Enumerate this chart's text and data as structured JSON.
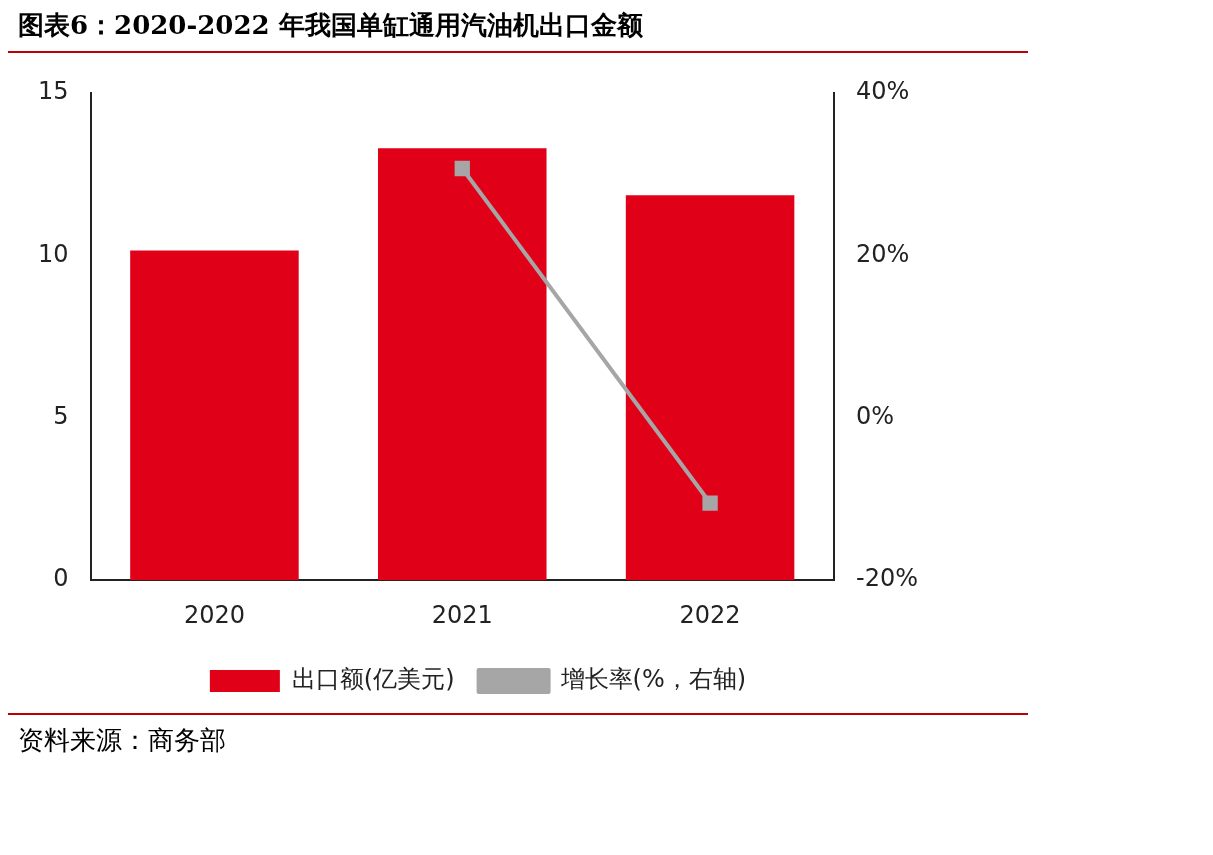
{
  "chart_data": {
    "type": "bar",
    "title": "图表6：2020-2022 年我国单缸通用汽油机出口金额",
    "categories": [
      "2020",
      "2021",
      "2022"
    ],
    "series": [
      {
        "name": "出口额(亿美元)",
        "color": "#e00018",
        "values": [
          10.15,
          13.3,
          11.85
        ]
      },
      {
        "name": "增长率(%，右轴)",
        "type": "line",
        "axis": "y2",
        "color": "#a6a6a6",
        "marker": "square",
        "values": [
          null,
          30.7,
          -10.5
        ]
      }
    ],
    "ylim": [
      0,
      15
    ],
    "yticks": [
      0,
      5,
      10,
      15
    ],
    "y2lim": [
      -20,
      40
    ],
    "y2ticks": [
      {
        "value": -20,
        "label": "-20%"
      },
      {
        "value": 0,
        "label": "0%"
      },
      {
        "value": 20,
        "label": "20%"
      },
      {
        "value": 40,
        "label": "40%"
      }
    ],
    "grid": false,
    "legend": "bottom",
    "annotations": [
      "资料来源：商务部"
    ]
  }
}
